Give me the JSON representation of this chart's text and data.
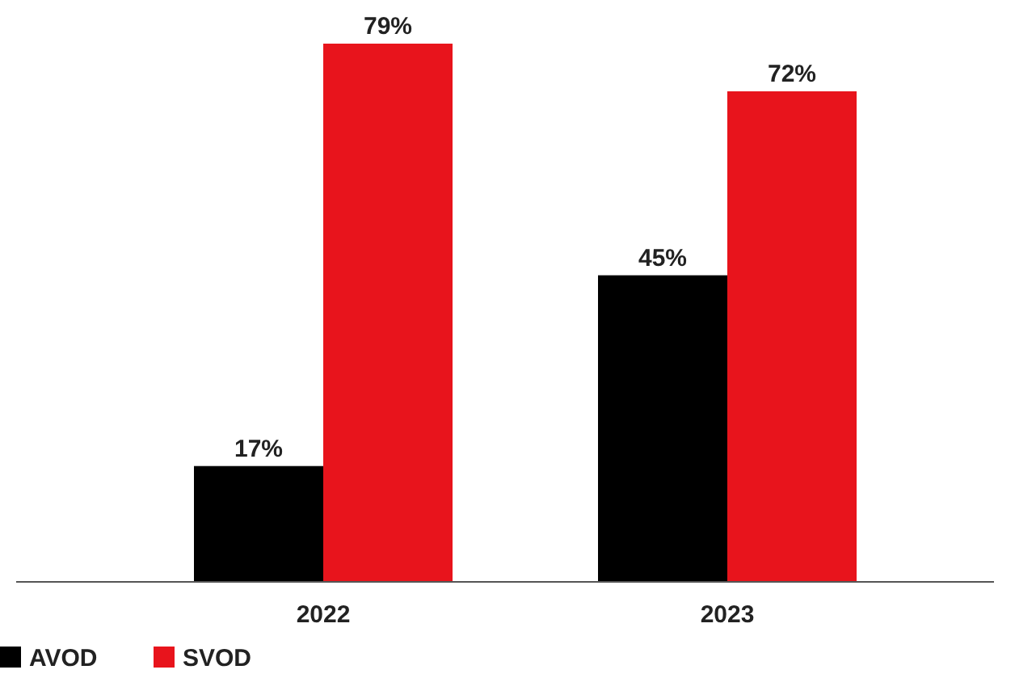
{
  "chart_data": {
    "type": "bar",
    "categories": [
      "2022",
      "2023"
    ],
    "series": [
      {
        "name": "AVOD",
        "color": "#000000",
        "values": [
          17,
          45
        ],
        "value_labels": [
          "17%",
          "45%"
        ]
      },
      {
        "name": "SVOD",
        "color": "#e8141c",
        "values": [
          79,
          72
        ],
        "value_labels": [
          "79%",
          "72%"
        ]
      }
    ],
    "legend": "bottom left",
    "tick_labels": "x"
  }
}
